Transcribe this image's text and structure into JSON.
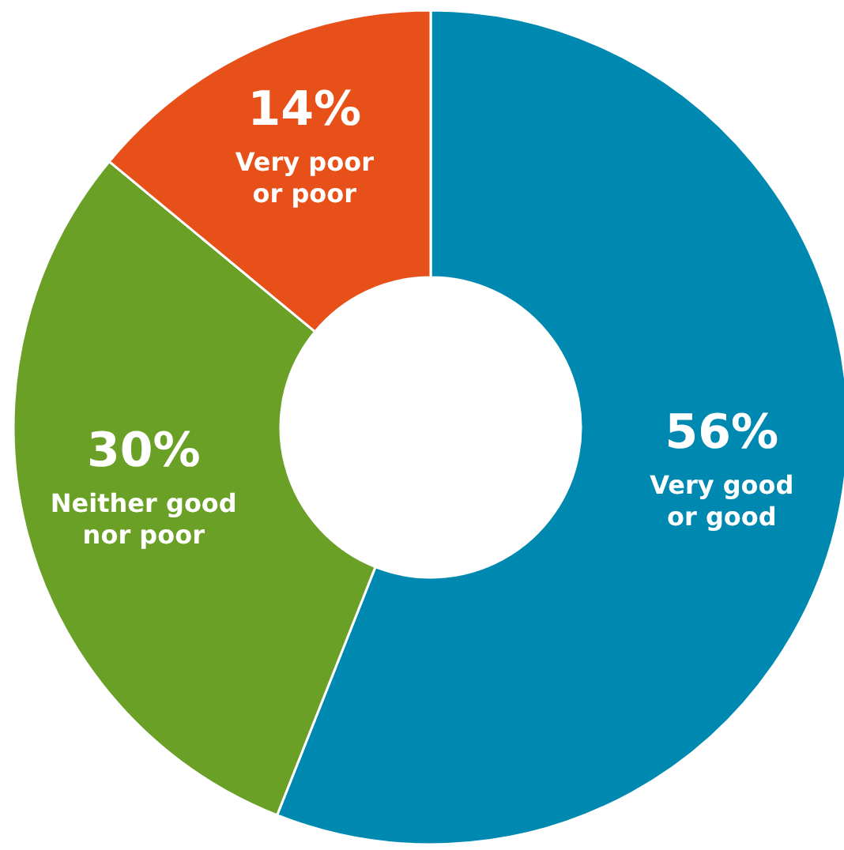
{
  "chart_data": {
    "type": "donut",
    "categories": [
      "Very good or good",
      "Neither good nor poor",
      "Very poor or poor"
    ],
    "values": [
      56,
      30,
      14
    ],
    "value_labels": [
      "56%",
      "30%",
      "14%"
    ],
    "colors": [
      "#0089b0",
      "#69a025",
      "#e8501a"
    ]
  }
}
